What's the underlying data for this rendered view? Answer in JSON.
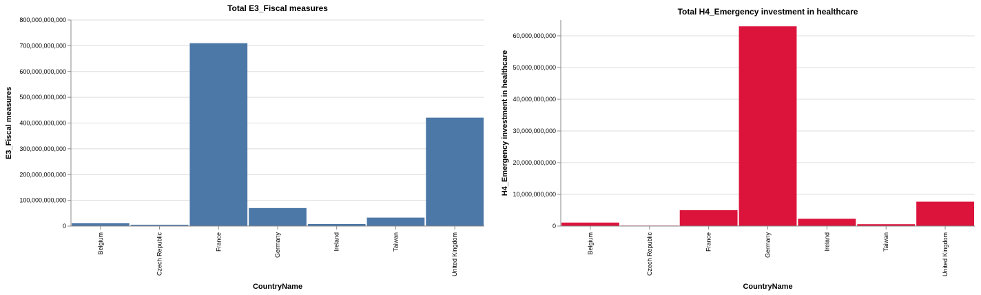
{
  "chart_data": [
    {
      "type": "bar",
      "title": "Total E3_Fiscal measures",
      "xlabel": "CountryName",
      "ylabel": "E3_Fiscal measures",
      "categories": [
        "Belgium",
        "Czech Republic",
        "France",
        "Germany",
        "Ireland",
        "Taiwan",
        "United Kingdom"
      ],
      "values": [
        11000000000,
        5000000000,
        710000000000,
        70000000000,
        8000000000,
        33000000000,
        421000000000
      ],
      "ylim": [
        0,
        800000000000
      ],
      "yticks": [
        0,
        100000000000,
        200000000000,
        300000000000,
        400000000000,
        500000000000,
        600000000000,
        700000000000,
        800000000000
      ],
      "ytick_labels": [
        "0",
        "100,000,000,000",
        "200,000,000,000",
        "300,000,000,000",
        "400,000,000,000",
        "500,000,000,000",
        "600,000,000,000",
        "700,000,000,000",
        "800,000,000,000"
      ],
      "color": "#4c78a8",
      "grid": true
    },
    {
      "type": "bar",
      "title": "Total H4_Emergency investment in healthcare",
      "xlabel": "CountryName",
      "ylabel": "H4_Emergency investment in healthcare",
      "categories": [
        "Belgium",
        "Czech Republic",
        "France",
        "Germany",
        "Ireland",
        "Taiwan",
        "United Kingdom"
      ],
      "values": [
        1100000000,
        150000000,
        5000000000,
        63000000000,
        2300000000,
        600000000,
        7700000000
      ],
      "ylim": [
        0,
        65000000000
      ],
      "yticks": [
        0,
        10000000000,
        20000000000,
        30000000000,
        40000000000,
        50000000000,
        60000000000
      ],
      "ytick_labels": [
        "0",
        "10,000,000,000",
        "20,000,000,000",
        "30,000,000,000",
        "40,000,000,000",
        "50,000,000,000",
        "60,000,000,000"
      ],
      "color": "#dc143c",
      "grid": true
    }
  ]
}
